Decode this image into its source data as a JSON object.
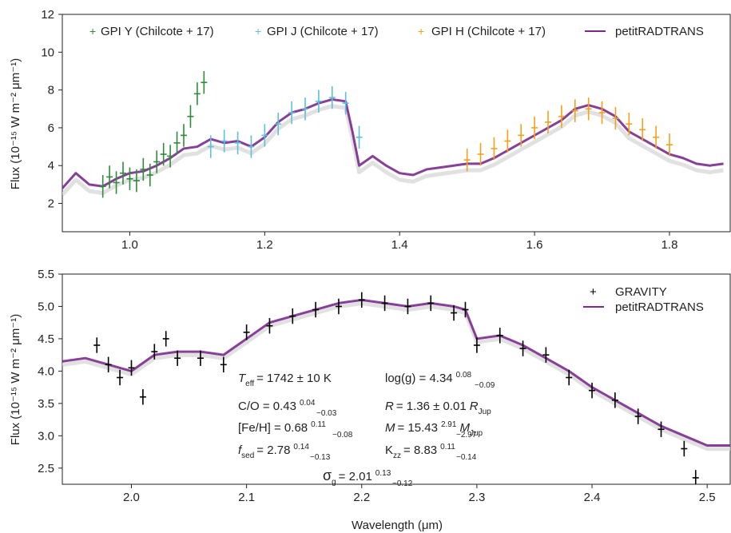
{
  "figure": {
    "xlabel": "Wavelength (μm)",
    "top_ylabel": "Flux (10⁻¹⁵ W m⁻² μm⁻¹)",
    "bottom_ylabel": "Flux (10⁻¹⁵ W m⁻² μm⁻¹)"
  },
  "colors": {
    "model": "#7b2a8c",
    "gpi_y": "#2e8b3a",
    "gpi_j": "#5bc0de",
    "gpi_h": "#f5a01a",
    "gravity": "#000000",
    "shadow": "#d9d9d9"
  },
  "chart_data": [
    {
      "type": "line",
      "xlim": [
        0.9,
        1.89
      ],
      "ylim": [
        0.5,
        12
      ],
      "xticks": [
        1.0,
        1.2,
        1.4,
        1.6,
        1.8
      ],
      "xtick_labels": [
        "1.0",
        "1.2",
        "1.4",
        "1.6",
        "1.8"
      ],
      "yticks": [
        2,
        4,
        6,
        8,
        10,
        12
      ],
      "ytick_labels": [
        "2",
        "4",
        "6",
        "8",
        "10",
        "12"
      ],
      "legend": "top",
      "legend_entries": [
        "GPI Y (Chilcote + 17)",
        "GPI J (Chilcote + 17)",
        "GPI H (Chilcote + 17)",
        "petitRADTRANS"
      ],
      "series": [
        {
          "name": "petitRADTRANS",
          "x": [
            0.9,
            0.92,
            0.94,
            0.96,
            0.98,
            1.0,
            1.02,
            1.04,
            1.06,
            1.08,
            1.1,
            1.12,
            1.14,
            1.16,
            1.18,
            1.2,
            1.22,
            1.24,
            1.26,
            1.28,
            1.3,
            1.32,
            1.33,
            1.34,
            1.36,
            1.38,
            1.4,
            1.42,
            1.44,
            1.46,
            1.48,
            1.5,
            1.52,
            1.54,
            1.56,
            1.58,
            1.6,
            1.62,
            1.64,
            1.66,
            1.68,
            1.7,
            1.72,
            1.74,
            1.76,
            1.78,
            1.8,
            1.82,
            1.84,
            1.86,
            1.88
          ],
          "y": [
            2.8,
            3.6,
            3.0,
            2.9,
            3.3,
            3.6,
            3.7,
            4.0,
            4.4,
            4.9,
            5.0,
            5.4,
            5.2,
            5.3,
            5.0,
            5.5,
            6.3,
            6.8,
            7.0,
            7.3,
            7.5,
            7.4,
            5.8,
            4.0,
            4.5,
            4.0,
            3.6,
            3.5,
            3.8,
            3.9,
            4.0,
            4.1,
            4.1,
            4.4,
            4.8,
            5.2,
            5.6,
            6.0,
            6.4,
            7.0,
            7.2,
            7.0,
            6.6,
            5.8,
            5.4,
            5.0,
            4.6,
            4.4,
            4.1,
            4.0,
            4.1
          ]
        },
        {
          "name": "GPI Y (Chilcote + 17)",
          "x": [
            0.96,
            0.97,
            0.98,
            0.99,
            1.0,
            1.01,
            1.02,
            1.03,
            1.04,
            1.05,
            1.06,
            1.07,
            1.08,
            1.09,
            1.1,
            1.11
          ],
          "y": [
            2.9,
            3.4,
            3.1,
            3.6,
            3.3,
            3.2,
            3.8,
            3.5,
            4.2,
            4.6,
            4.5,
            5.2,
            5.6,
            6.6,
            7.8,
            8.4
          ]
        },
        {
          "name": "GPI J (Chilcote + 17)",
          "x": [
            1.12,
            1.14,
            1.16,
            1.18,
            1.2,
            1.22,
            1.24,
            1.26,
            1.28,
            1.3,
            1.32,
            1.34
          ],
          "y": [
            5.0,
            5.3,
            5.2,
            5.0,
            5.6,
            6.2,
            6.8,
            7.0,
            7.4,
            7.6,
            7.3,
            5.5
          ]
        },
        {
          "name": "GPI H (Chilcote + 17)",
          "x": [
            1.5,
            1.52,
            1.54,
            1.56,
            1.58,
            1.6,
            1.62,
            1.64,
            1.66,
            1.68,
            1.7,
            1.72,
            1.74,
            1.76,
            1.78,
            1.8
          ],
          "y": [
            4.3,
            4.6,
            4.9,
            5.3,
            5.6,
            6.0,
            6.3,
            6.6,
            6.9,
            7.0,
            6.8,
            6.5,
            6.2,
            5.9,
            5.5,
            5.1
          ]
        }
      ]
    },
    {
      "type": "line",
      "xlim": [
        1.94,
        2.52
      ],
      "ylim": [
        2.25,
        5.5
      ],
      "xticks": [
        2.0,
        2.1,
        2.2,
        2.3,
        2.4,
        2.5
      ],
      "xtick_labels": [
        "2.0",
        "2.1",
        "2.2",
        "2.3",
        "2.4",
        "2.5"
      ],
      "yticks": [
        2.5,
        3.0,
        3.5,
        4.0,
        4.5,
        5.0,
        5.5
      ],
      "ytick_labels": [
        "2.5",
        "3.0",
        "3.5",
        "4.0",
        "4.5",
        "5.0",
        "5.5"
      ],
      "legend": "top-right",
      "legend_entries": [
        "GRAVITY",
        "petitRADTRANS"
      ],
      "series": [
        {
          "name": "petitRADTRANS",
          "x": [
            1.94,
            1.96,
            1.98,
            2.0,
            2.02,
            2.04,
            2.06,
            2.08,
            2.1,
            2.12,
            2.14,
            2.16,
            2.18,
            2.2,
            2.22,
            2.24,
            2.26,
            2.28,
            2.29,
            2.3,
            2.32,
            2.34,
            2.36,
            2.38,
            2.4,
            2.42,
            2.44,
            2.46,
            2.48,
            2.5,
            2.52
          ],
          "y": [
            4.15,
            4.2,
            4.1,
            4.0,
            4.25,
            4.3,
            4.3,
            4.25,
            4.5,
            4.75,
            4.85,
            4.95,
            5.05,
            5.1,
            5.05,
            5.0,
            5.05,
            5.0,
            4.95,
            4.5,
            4.55,
            4.4,
            4.2,
            4.0,
            3.75,
            3.55,
            3.35,
            3.15,
            3.0,
            2.85,
            2.85
          ]
        },
        {
          "name": "GRAVITY",
          "x": [
            1.97,
            1.98,
            1.99,
            2.0,
            2.01,
            2.02,
            2.03,
            2.04,
            2.06,
            2.08,
            2.1,
            2.12,
            2.14,
            2.16,
            2.18,
            2.2,
            2.22,
            2.24,
            2.26,
            2.28,
            2.29,
            2.3,
            2.32,
            2.34,
            2.36,
            2.38,
            2.4,
            2.42,
            2.44,
            2.46,
            2.48,
            2.49
          ],
          "y": [
            4.4,
            4.1,
            3.9,
            4.05,
            3.6,
            4.3,
            4.5,
            4.2,
            4.2,
            4.1,
            4.6,
            4.7,
            4.85,
            4.95,
            5.0,
            5.1,
            5.05,
            5.0,
            5.05,
            4.9,
            4.95,
            4.4,
            4.55,
            4.35,
            4.25,
            3.9,
            3.7,
            3.55,
            3.3,
            3.1,
            2.8,
            2.35
          ]
        }
      ]
    }
  ],
  "params": {
    "teff": {
      "symbol": "T",
      "sub": "eff",
      "value": "= 1742 ± 10 K"
    },
    "logg": {
      "label": "log(g) = 4.34",
      "sup": "0.08",
      "sub": "−0.09"
    },
    "co": {
      "label": "C/O = 0.43",
      "sup": "0.04",
      "sub": "−0.03"
    },
    "radius": {
      "symbol": "R",
      "value": "= 1.36 ± 0.01",
      "unit": "R",
      "unit_sub": "Jup"
    },
    "feh": {
      "label": "[Fe/H] = 0.68",
      "sup": "0.11",
      "sub": "−0.08"
    },
    "mass": {
      "symbol": "M",
      "value": "= 15.43",
      "sup": "2.91",
      "sub": "−2.97",
      "unit": "M",
      "unit_sub": "Jup"
    },
    "fsed": {
      "symbol": "f",
      "sub_label": "sed",
      "value": "= 2.78",
      "sup": "0.14",
      "sub": "−0.13"
    },
    "kzz": {
      "symbol": "K",
      "sub_label": "zz",
      "value": "= 8.83",
      "sup": "0.11",
      "sub": "−0.14"
    },
    "sigma": {
      "symbol": "σ",
      "sub_label": "g",
      "value": "= 2.01",
      "sup": "0.13",
      "sub": "−0.12"
    }
  }
}
